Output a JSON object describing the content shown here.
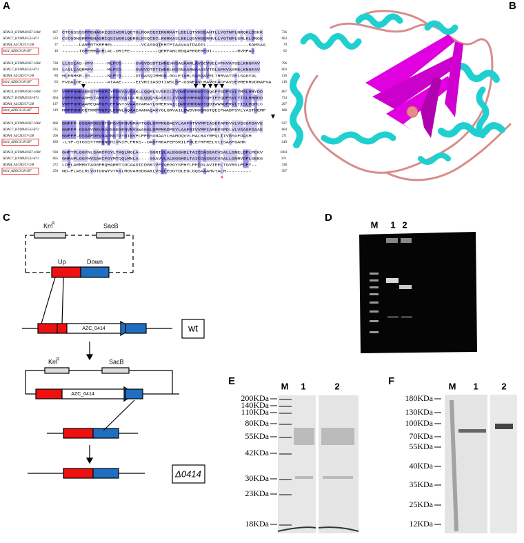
{
  "panels": {
    "a": {
      "label": "A",
      "asterisk": "*",
      "blocks": [
        {
          "rows": [
            {
              "name": "HDAC4_HUMAN/667-1084",
              "start": 667,
              "sequence": "CTCGSSSSPPEHAGKIQSIWSRLQETGLRGKCECIRGRKATLEELQTVHSEAHTLLYGTNPLNRQKLDSKK",
              "end": 736
            },
            {
              "name": "HDAC7_HUMAN/533-871",
              "start": 533,
              "sequence": "CSCGDNSRPPEHAGRIQSIWSRLQERGLRSQCECLRGRKASLEELQSVHSERHVLLYGTNPLSRLKLDNGK",
              "end": 603
            },
            {
              "name": "HDAH_ALCSD/37-338",
              "start": 37,
              "sequence": "------LARPDTKRPHEL----------VCASGQIEHTPIAAVAATDADIL---------------KAHSAA",
              "end": 79
            },
            {
              "name": "0414_AZOCS/18-307",
              "start": 18,
              "sequence": "------TGPERRADRLAL-DRIFE----------QERFANLRDQAPRGEREDI---------RVHPAD",
              "end": 62
            }
          ]
        },
        {
          "rows": [
            {
              "name": "HDAC4_HUMAN/667-1084",
              "start": 738,
              "sequence": "LLGSLAS-VFV-----RLPCG-----GVGVDSDTIWNEVHSAGAARLAVGCVVELVFKVATGELKNGFAV",
              "end": 796
            },
            {
              "name": "HDAC7_HUMAN/533-871",
              "start": 604,
              "sequence": "LAGLLAQRMFV-----MLPCG-----GVGVDTDTIWNELHSSNAARWAAGSVTDLAFKVASRELKNGFAV",
              "end": 663
            },
            {
              "name": "HDAH_ALCSD/37-338",
              "start": 80,
              "sequence": "HLENMKR-VS------NLPTG-----DTGASQIMMGN-GGLEIARLSAGGAVELTRRVATGELSAGYAL",
              "end": 136
            },
            {
              "name": "0414_AZOCS/18-307",
              "start": 63,
              "sequence": "FVDALGE---------ATAAE-----EIVRIIASDTIWSLSP-GSWEAVLRAVGCACFAVDEVMEKRVDNAFVA",
              "end": 118
            }
          ]
        },
        {
          "rows": [
            {
              "name": "HDAC4_HUMAN/667-1084",
              "start": 797,
              "sequence": "VRPPGHHAEESTPMGFCYFNSVAVAAKLLQQRLSVSKILIVDWDVHHGNGTQQAFYSDPSVLYMSLHRYDD",
              "end": 867
            },
            {
              "name": "HDAC7_HUMAN/533-871",
              "start": 664,
              "sequence": "VRPPGHHADHSTAMGFCFFNSVAIACRQLQQQSKASKILIVDWDVHHGNGTQEIFYQDPSVLYISLHRHDD",
              "end": 734
            },
            {
              "name": "HDAH_ALCSD/37-338",
              "start": 137,
              "sequence": "VRPPGHHAAMEQAMGFCFFNNTSVAAGYARAYLGMERVAILDWDVHHGNGTQDIWWNDPRVLTISLHQHLC",
              "end": 207
            },
            {
              "name": "0414_AZOCS/18-307",
              "start": 119,
              "sequence": "MRPPGHHCETRRPMGFCLFNNLAQAAIAAHAQAKYGLGRVAILDWDVHHGNGTQEIFWADPSVLYASTHEMP",
              "end": 188
            }
          ]
        },
        {
          "rows": [
            {
              "name": "HDAC4_HUMAN/667-1084",
              "start": 868,
              "sequence": "GNFFP-GSGAPDEVGTGPGVGFNVNMAFTGGLDPPMGDAEYLAAFRTVVMPIASEFAPDVVLVSSGFDAVE",
              "end": 937
            },
            {
              "name": "HDAC7_HUMAN/533-871",
              "start": 735,
              "sequence": "GNFFP-GSGAVDEVGAGSGEGFNVNVAWAGGLDPPMGDPEYLAAFRIVVMPIAREFSPDLVLVSAGFDAAE",
              "end": 804
            },
            {
              "name": "HDAH_ALCSD/37-338",
              "start": 208,
              "sequence": "GNFFP-GSGAPDEVGAGNGTGYNINVPLPPGSGNAAYLHAMDQVVLHALRAYRPQLIIVGSGFDASM",
              "end": 271
            },
            {
              "name": "0414_AZOCS/18-307",
              "start": 189,
              "sequence": "-LYP-GTGSSYTRRGNGHIVNIPLPRKS--DADFRKAFEPSRILPRLETRFRELVIISAGFDAHK",
              "end": 249
            }
          ]
        },
        {
          "rows": [
            {
              "name": "HDAC4_HUMAN/667-1084",
              "start": 938,
              "sequence": "GHPTPLGGYNLSARCFGYLTKQLMGLA----GGRIVLALEGGHDLTAICDASEACVSALLGNELDPLPEKV",
              "end": 1004
            },
            {
              "name": "HDAC7_HUMAN/533-871",
              "start": 805,
              "sequence": "GHPAPLGGYHVSAKCFGYMTQQLMNLA----GGAVVLALEGGHDLTAICDASEACVAALLGNRVDPLSEEG",
              "end": 871
            },
            {
              "name": "HDAH_ALCSD/37-338",
              "start": 272,
              "sequence": "LDPLARMMVTADGFRQMARRTIDCAADICDGRIVFVQEGGYSPHYLPFCGLAVIEELTGVRSLPDPY--",
              "end": 338
            },
            {
              "name": "0414_AZOCS/18-307",
              "start": 250,
              "sequence": "ND-PLASLRLVDTDGWYVTKKLMDVAHSDGAKLVSVLEGGYDLEGLGQSAAAHVTALM---------",
              "end": 307
            }
          ]
        }
      ]
    },
    "b": {
      "label": "B"
    },
    "c": {
      "label": "C",
      "km": "Km",
      "km_sup": "R",
      "sacb": "SacB",
      "up": "Up",
      "down": "Down",
      "gene": "AZC_0414",
      "wt": "wt",
      "mutant": "Δ0414"
    },
    "d": {
      "label": "D",
      "lanes": [
        "M",
        "1",
        "2"
      ]
    },
    "e": {
      "label": "E",
      "lanes": [
        "M",
        "1",
        "2"
      ],
      "markers": [
        "200KDa",
        "140KDa",
        "110KDa",
        "80KDa",
        "55KDa",
        "42KDa",
        "30KDa",
        "23KDa",
        "18KDa"
      ]
    },
    "f": {
      "label": "F",
      "lanes": [
        "M",
        "1",
        "2"
      ],
      "markers": [
        "180KDa",
        "130KDa",
        "100KDa",
        "70KDa",
        "55KDa",
        "40KDa",
        "35KDa",
        "25KDa",
        "12KDa"
      ]
    }
  }
}
